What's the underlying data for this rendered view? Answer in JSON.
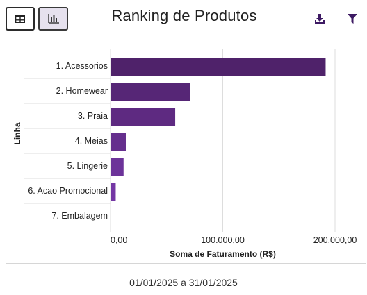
{
  "header": {
    "title": "Ranking de Produtos",
    "table_view_icon": "table-icon",
    "chart_view_icon": "bar-chart-icon",
    "download_icon": "download-icon",
    "filter_icon": "filter-icon"
  },
  "colors": {
    "bar_dark": "#4f226a",
    "bar_light": "#7b3bb0",
    "grid": "#dddddd",
    "icon": "#3d1a63"
  },
  "chart_data": {
    "type": "bar",
    "orientation": "horizontal",
    "categories": [
      "1. Acessorios",
      "2. Homewear",
      "3. Praia",
      "4. Meias",
      "5. Lingerie",
      "6. Acao Promocional",
      "7. Embalagem"
    ],
    "values": [
      191000,
      70000,
      57000,
      13000,
      11000,
      4000,
      0
    ],
    "xlabel": "Soma de Faturamento (R$)",
    "ylabel": "Linha",
    "xlim": [
      0,
      200000
    ],
    "xticks": [
      0,
      100000,
      200000
    ],
    "xtick_labels": [
      "0,00",
      "100.000,00",
      "200.000,00"
    ],
    "grid": "vertical"
  },
  "footer": {
    "date_range": "01/01/2025 a 31/01/2025"
  }
}
